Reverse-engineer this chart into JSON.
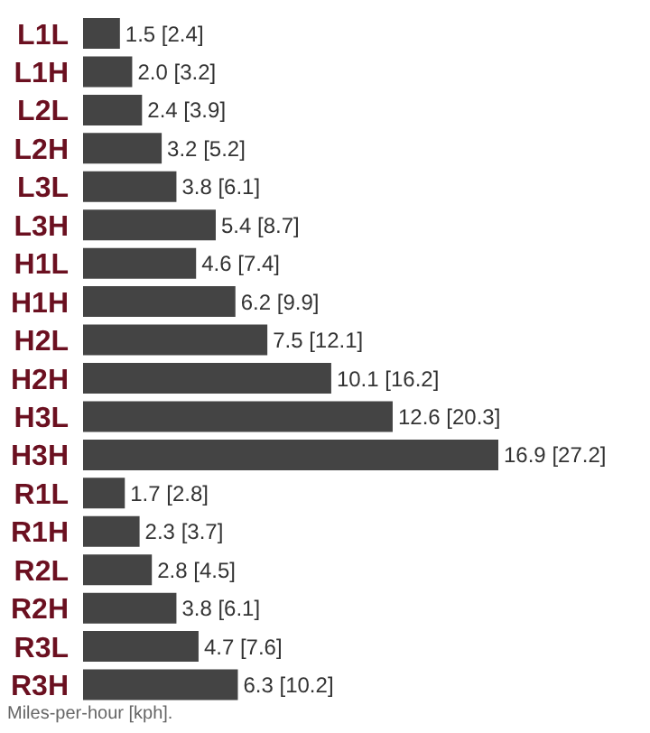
{
  "chart_data": {
    "type": "bar",
    "orientation": "horizontal",
    "tick_labels": false,
    "categories": [
      "L1L",
      "L1H",
      "L2L",
      "L2H",
      "L3L",
      "L3H",
      "H1L",
      "H1H",
      "H2L",
      "H2H",
      "H3L",
      "H3H",
      "R1L",
      "R1H",
      "R2L",
      "R2H",
      "R3L",
      "R3H"
    ],
    "values": [
      1.5,
      2.0,
      2.4,
      3.2,
      3.8,
      5.4,
      4.6,
      6.2,
      7.5,
      10.1,
      12.6,
      16.9,
      1.7,
      2.3,
      2.8,
      3.8,
      4.7,
      6.3
    ],
    "value_labels": [
      "1.5 [2.4]",
      "2.0 [3.2]",
      "2.4 [3.9]",
      "3.2 [5.2]",
      "3.8 [6.1]",
      "5.4 [8.7]",
      "4.6 [7.4]",
      "6.2 [9.9]",
      "7.5 [12.1]",
      "10.1 [16.2]",
      "12.6 [20.3]",
      "16.9 [27.2]",
      "1.7 [2.8]",
      "2.3 [3.7]",
      "2.8 [4.5]",
      "3.8 [6.1]",
      "4.7 [7.6]",
      "6.3 [10.2]"
    ],
    "color": "#444444",
    "annotations": [
      "Miles-per-hour [kph]."
    ]
  }
}
